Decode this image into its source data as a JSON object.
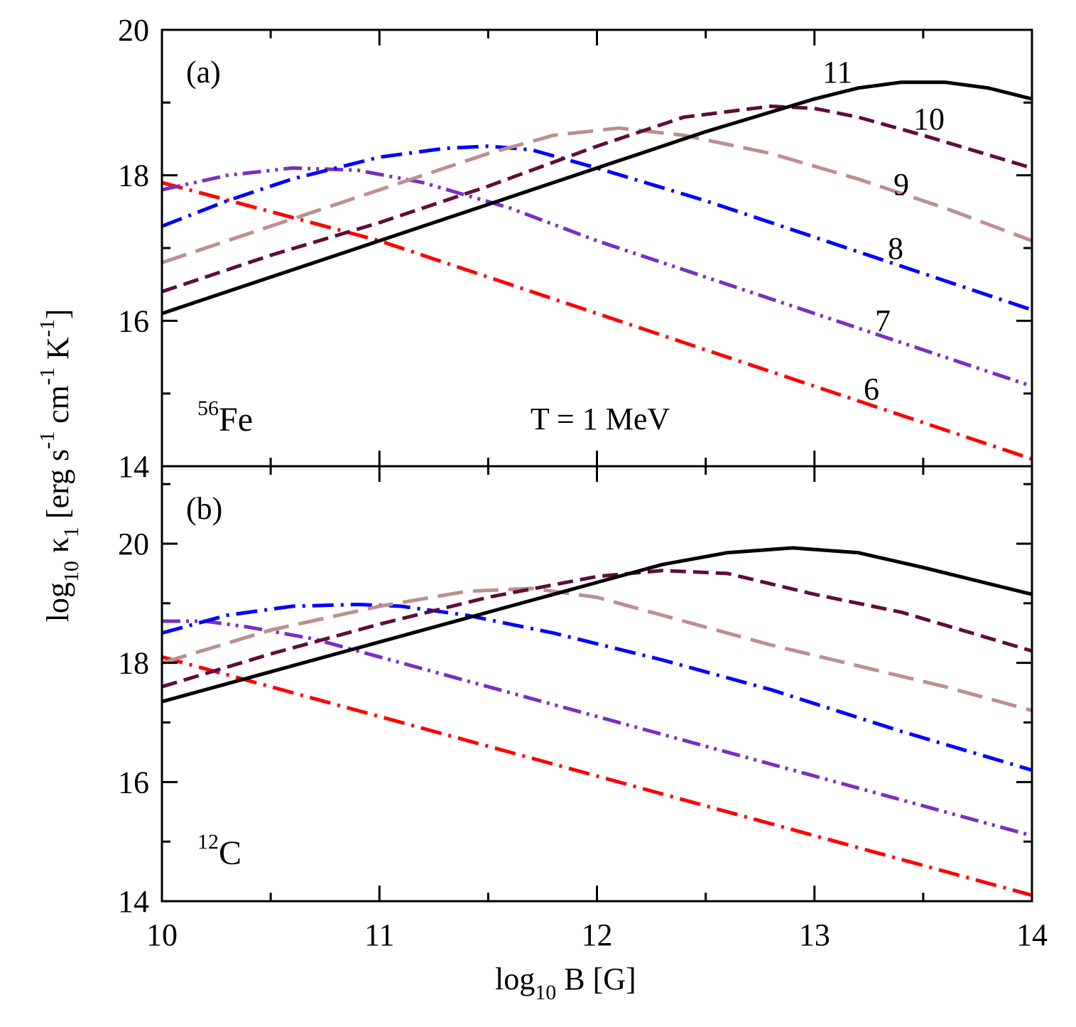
{
  "chart_data": {
    "type": "line",
    "xlabel": "log10 B [G]",
    "xlim": [
      10,
      14
    ],
    "x_ticks": [
      "10",
      "11",
      "12",
      "13",
      "14"
    ],
    "ylabel": "log10 κ1 [erg s-1 cm-1 K-1]",
    "shared_series_style": {
      "6": {
        "color": "#ff0000",
        "dash": "dash-dot"
      },
      "7": {
        "color": "#7a2fc0",
        "dash": "dash-dot-dot"
      },
      "8": {
        "color": "#0000ff",
        "dash": "dash-dot"
      },
      "9": {
        "color": "#bc8f8f",
        "dash": "long-dash"
      },
      "10": {
        "color": "#5e0d3b",
        "dash": "dash"
      },
      "11": {
        "color": "#000000",
        "dash": "solid"
      }
    },
    "panels": [
      {
        "panel_label": "(a)",
        "nucleus_mass": "56",
        "nucleus_symbol": "Fe",
        "annotation": "T = 1 MeV",
        "ylim": [
          14,
          20
        ],
        "y_ticks": [
          "14",
          "16",
          "18",
          "20"
        ],
        "series": [
          {
            "name": "6",
            "x": [
              10,
              10.5,
              11,
              11.5,
              12,
              12.5,
              13,
              13.5,
              14
            ],
            "values": [
              17.9,
              17.5,
              17.1,
              16.6,
              16.1,
              15.6,
              15.1,
              14.6,
              14.1
            ]
          },
          {
            "name": "7",
            "x": [
              10,
              10.3,
              10.6,
              10.9,
              11.2,
              11.6,
              12,
              12.5,
              13,
              13.5,
              14
            ],
            "values": [
              17.8,
              18.0,
              18.1,
              18.07,
              17.9,
              17.55,
              17.1,
              16.6,
              16.1,
              15.6,
              15.1
            ]
          },
          {
            "name": "8",
            "x": [
              10,
              10.3,
              10.6,
              11,
              11.3,
              11.5,
              11.7,
              12,
              12.5,
              13,
              13.5,
              14
            ],
            "values": [
              17.3,
              17.65,
              17.95,
              18.25,
              18.37,
              18.4,
              18.35,
              18.1,
              17.65,
              17.15,
              16.65,
              16.15
            ]
          },
          {
            "name": "9",
            "x": [
              10,
              10.5,
              11,
              11.5,
              11.8,
              12.1,
              12.4,
              12.8,
              13.2,
              13.6,
              14
            ],
            "values": [
              16.8,
              17.3,
              17.8,
              18.3,
              18.55,
              18.65,
              18.55,
              18.3,
              17.95,
              17.55,
              17.1
            ]
          },
          {
            "name": "10",
            "x": [
              10,
              10.5,
              11,
              11.5,
              12,
              12.4,
              12.8,
              13,
              13.2,
              13.5,
              14
            ],
            "values": [
              16.4,
              16.9,
              17.35,
              17.85,
              18.4,
              18.8,
              18.95,
              18.92,
              18.8,
              18.55,
              18.1
            ]
          },
          {
            "name": "11",
            "x": [
              10,
              10.5,
              11,
              11.5,
              12,
              12.5,
              13,
              13.2,
              13.4,
              13.6,
              13.8,
              14
            ],
            "values": [
              16.1,
              16.6,
              17.1,
              17.6,
              18.1,
              18.6,
              19.05,
              19.2,
              19.28,
              19.28,
              19.2,
              19.05
            ]
          }
        ],
        "curve_labels": [
          "11",
          "10",
          "9",
          "8",
          "7",
          "6"
        ]
      },
      {
        "panel_label": "(b)",
        "nucleus_mass": "12",
        "nucleus_symbol": "C",
        "ylim": [
          14,
          21.3
        ],
        "y_ticks": [
          "14",
          "16",
          "18",
          "20"
        ],
        "series": [
          {
            "name": "6",
            "x": [
              10,
              10.5,
              11,
              11.5,
              12,
              12.5,
              13,
              13.5,
              14
            ],
            "values": [
              18.1,
              17.6,
              17.1,
              16.6,
              16.1,
              15.6,
              15.1,
              14.6,
              14.1
            ]
          },
          {
            "name": "7",
            "x": [
              10,
              10.2,
              10.4,
              10.7,
              11,
              11.5,
              12,
              12.5,
              13,
              13.5,
              14
            ],
            "values": [
              18.7,
              18.7,
              18.6,
              18.4,
              18.1,
              17.6,
              17.1,
              16.6,
              16.1,
              15.6,
              15.1
            ]
          },
          {
            "name": "8",
            "x": [
              10,
              10.3,
              10.6,
              10.9,
              11.1,
              11.4,
              11.8,
              12.3,
              12.8,
              13.4,
              14
            ],
            "values": [
              18.5,
              18.8,
              18.95,
              18.98,
              18.95,
              18.8,
              18.5,
              18.05,
              17.55,
              16.85,
              16.2
            ]
          },
          {
            "name": "9",
            "x": [
              10,
              10.5,
              11,
              11.4,
              11.7,
              12,
              12.4,
              12.8,
              13.2,
              13.6,
              14
            ],
            "values": [
              18.0,
              18.55,
              18.95,
              19.2,
              19.25,
              19.1,
              18.7,
              18.3,
              17.95,
              17.6,
              17.2
            ]
          },
          {
            "name": "10",
            "x": [
              10,
              10.5,
              11,
              11.5,
              12,
              12.3,
              12.6,
              13,
              13.4,
              14
            ],
            "values": [
              17.6,
              18.15,
              18.65,
              19.1,
              19.45,
              19.55,
              19.5,
              19.15,
              18.85,
              18.2
            ]
          },
          {
            "name": "11",
            "x": [
              10,
              10.5,
              11,
              11.5,
              12,
              12.3,
              12.6,
              12.9,
              13.2,
              13.5,
              14
            ],
            "values": [
              17.35,
              17.85,
              18.35,
              18.85,
              19.35,
              19.65,
              19.85,
              19.93,
              19.85,
              19.6,
              19.15
            ]
          }
        ]
      }
    ]
  }
}
